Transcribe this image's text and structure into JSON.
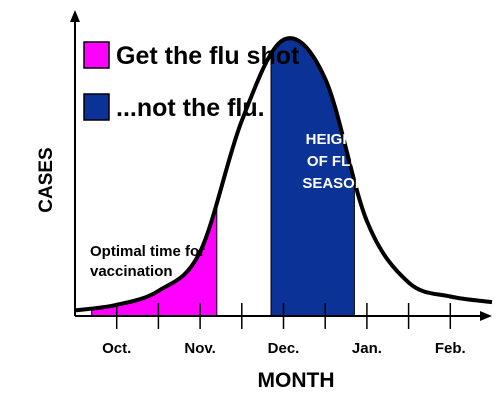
{
  "chart_data": {
    "type": "area",
    "xlabel": "MONTH",
    "ylabel": "CASES",
    "xticks": [
      "Oct.",
      "Nov.",
      "Dec.",
      "Jan.",
      "Feb."
    ],
    "legend": [
      {
        "label": "Get the flu shot",
        "color": "#ff00ff"
      },
      {
        "label": "...not the flu.",
        "color": "#0b3296"
      }
    ],
    "curve_x": [
      0,
      0.5,
      1.0,
      1.5,
      2.0,
      2.5,
      3.0,
      3.5,
      4.0,
      4.5,
      5.0
    ],
    "curve_y": [
      0.02,
      0.04,
      0.09,
      0.23,
      0.7,
      0.99,
      0.85,
      0.34,
      0.12,
      0.07,
      0.05
    ],
    "shaded_regions": [
      {
        "from": 0.2,
        "to": 1.7,
        "label": "Optimal time for vaccination",
        "color": "#ff00ff"
      },
      {
        "from": 2.35,
        "to": 3.35,
        "label": "HEIGHT OF FLU SEASON",
        "color": "#0b3296"
      }
    ],
    "grid": false
  },
  "annotations": {
    "optimal": [
      "Optimal time for",
      "vaccination"
    ],
    "height": [
      "HEIGHT",
      "OF FLU",
      "SEASON"
    ]
  }
}
